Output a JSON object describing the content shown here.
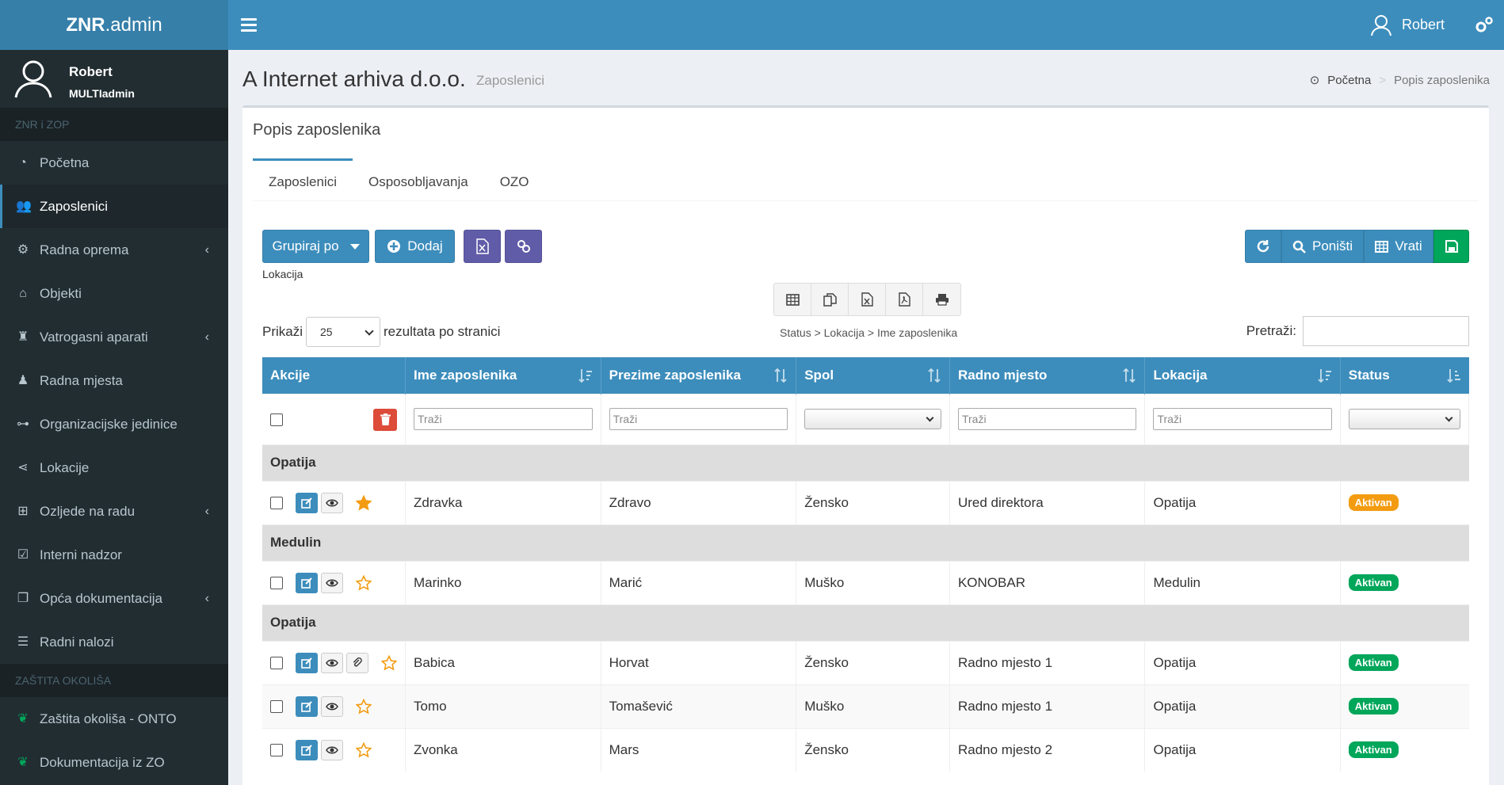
{
  "app": {
    "logo_bold": "ZNR",
    "logo_rest": ".admin"
  },
  "topbar": {
    "user_name": "Robert"
  },
  "sidebar": {
    "user_name": "Robert",
    "user_role": "MULTIadmin",
    "section1": "ZNR i ZOP",
    "items": [
      {
        "label": "Početna",
        "icon": "dashboard-icon"
      },
      {
        "label": "Zaposlenici",
        "icon": "users-icon",
        "active": true
      },
      {
        "label": "Radna oprema",
        "icon": "cogs-icon",
        "expandable": true
      },
      {
        "label": "Objekti",
        "icon": "home-icon"
      },
      {
        "label": "Vatrogasni aparati",
        "icon": "extinguisher-icon",
        "expandable": true
      },
      {
        "label": "Radna mjesta",
        "icon": "worker-icon"
      },
      {
        "label": "Organizacijske jedinice",
        "icon": "sitemap-icon"
      },
      {
        "label": "Lokacije",
        "icon": "share-icon"
      },
      {
        "label": "Ozljede na radu",
        "icon": "plus-square-icon",
        "expandable": true
      },
      {
        "label": "Interni nadzor",
        "icon": "check-square-icon"
      },
      {
        "label": "Opća dokumentacija",
        "icon": "copy-icon",
        "expandable": true
      },
      {
        "label": "Radni nalozi",
        "icon": "list-icon"
      }
    ],
    "section2": "ZAŠTITA OKOLIŠA",
    "items2": [
      {
        "label": "Zaštita okoliša - ONTO",
        "icon": "leaf-icon"
      },
      {
        "label": "Dokumentacija iz ZO",
        "icon": "leaf-icon"
      }
    ]
  },
  "header": {
    "title": "A Internet arhiva d.o.o.",
    "subtitle": "Zaposlenici"
  },
  "breadcrumb": {
    "home": "Početna",
    "current": "Popis zaposlenika"
  },
  "box": {
    "title": "Popis zaposlenika"
  },
  "tabs": [
    "Zaposlenici",
    "Osposobljavanja",
    "OZO"
  ],
  "toolbar": {
    "group_by": "Grupiraj po",
    "add": "Dodaj",
    "group_label": "Lokacija",
    "reset": "Poništi",
    "restore": "Vrati"
  },
  "table_controls": {
    "show": "Prikaži",
    "per_page_value": "25",
    "per_page_suffix": "rezultata po stranici",
    "grouping": "Status > Lokacija > Ime zaposlenika",
    "search_label": "Pretraži:"
  },
  "columns": [
    "Akcije",
    "Ime zaposlenika",
    "Prezime zaposlenika",
    "Spol",
    "Radno mjesto",
    "Lokacija",
    "Status"
  ],
  "filter_placeholder": "Traži",
  "rows": [
    {
      "group": "Opatija"
    },
    {
      "ime": "Zdravka",
      "prezime": "Zdravo",
      "spol": "Žensko",
      "radno": "Ured direktora",
      "lokacija": "Opatija",
      "status": "Aktivan",
      "status_color": "#f39c12",
      "star": true
    },
    {
      "group": "Medulin"
    },
    {
      "ime": "Marinko",
      "prezime": "Marić",
      "spol": "Muško",
      "radno": "KONOBAR",
      "lokacija": "Medulin",
      "status": "Aktivan",
      "status_color": "#00a65a",
      "star": false
    },
    {
      "group": "Opatija"
    },
    {
      "ime": "Babica",
      "prezime": "Horvat",
      "spol": "Žensko",
      "radno": "Radno mjesto 1",
      "lokacija": "Opatija",
      "status": "Aktivan",
      "status_color": "#00a65a",
      "star": false,
      "attach": true
    },
    {
      "ime": "Tomo",
      "prezime": "Tomašević",
      "spol": "Muško",
      "radno": "Radno mjesto 1",
      "lokacija": "Opatija",
      "status": "Aktivan",
      "status_color": "#00a65a",
      "star": false
    },
    {
      "ime": "Zvonka",
      "prezime": "Mars",
      "spol": "Žensko",
      "radno": "Radno mjesto 2",
      "lokacija": "Opatija",
      "status": "Aktivan",
      "status_color": "#00a65a",
      "star": false
    }
  ]
}
